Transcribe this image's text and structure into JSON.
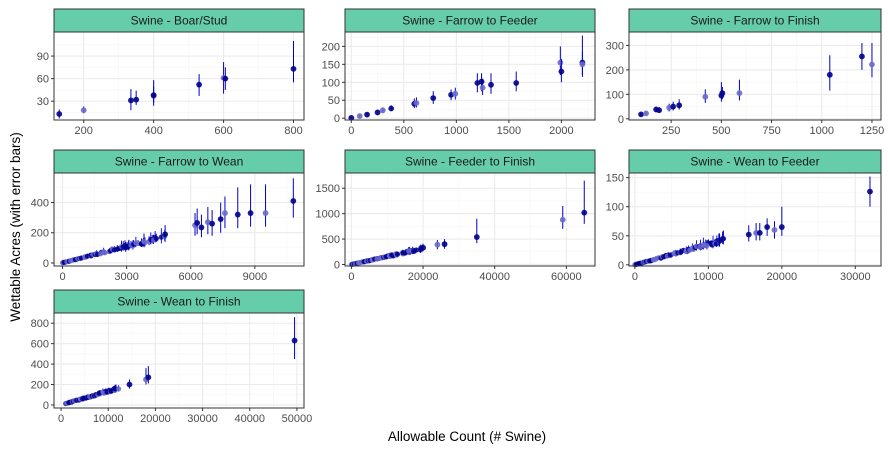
{
  "figure": {
    "xlabel": "Allowable Count (# Swine)",
    "ylabel": "Wettable Acres (with error bars)"
  },
  "colors": {
    "strip_fill": "#66cdaa",
    "strip_border": "#333333",
    "point_dark": "#00008b",
    "point_light": "#6a6acb",
    "error_bar": "#0000cd",
    "grid_major": "#ebebeb",
    "grid_minor": "#f5f5f5"
  },
  "chart_data": [
    {
      "type": "scatter",
      "title": "Swine - Boar/Stud",
      "xlim": [
        115,
        830
      ],
      "ylim": [
        5,
        122
      ],
      "x_ticks": [
        200,
        400,
        600,
        800
      ],
      "y_ticks": [
        30,
        60,
        90
      ],
      "points": [
        {
          "x": 130,
          "y": 13,
          "lo": 7,
          "hi": 19
        },
        {
          "x": 200,
          "y": 18,
          "lo": 14,
          "hi": 23
        },
        {
          "x": 335,
          "y": 31,
          "lo": 18,
          "hi": 46
        },
        {
          "x": 350,
          "y": 32,
          "lo": 25,
          "hi": 44
        },
        {
          "x": 400,
          "y": 37,
          "lo": 24,
          "hi": 58
        },
        {
          "x": 400,
          "y": 38,
          "lo": 28,
          "hi": 50
        },
        {
          "x": 530,
          "y": 52,
          "lo": 37,
          "hi": 66
        },
        {
          "x": 600,
          "y": 61,
          "lo": 40,
          "hi": 82
        },
        {
          "x": 605,
          "y": 60,
          "lo": 45,
          "hi": 75
        },
        {
          "x": 800,
          "y": 73,
          "lo": 55,
          "hi": 110
        }
      ]
    },
    {
      "type": "scatter",
      "title": "Swine - Farrow to Feeder",
      "xlim": [
        -60,
        2320
      ],
      "ylim": [
        -5,
        240
      ],
      "x_ticks": [
        0,
        500,
        1000,
        1500,
        2000
      ],
      "y_ticks": [
        0,
        50,
        100,
        150,
        200
      ],
      "points": [
        {
          "x": 0,
          "y": 1,
          "lo": 0,
          "hi": 3
        },
        {
          "x": 80,
          "y": 6,
          "lo": 3,
          "hi": 10
        },
        {
          "x": 150,
          "y": 10,
          "lo": 6,
          "hi": 14
        },
        {
          "x": 250,
          "y": 16,
          "lo": 10,
          "hi": 22
        },
        {
          "x": 300,
          "y": 22,
          "lo": 15,
          "hi": 30
        },
        {
          "x": 380,
          "y": 27,
          "lo": 20,
          "hi": 36
        },
        {
          "x": 600,
          "y": 40,
          "lo": 28,
          "hi": 55
        },
        {
          "x": 620,
          "y": 42,
          "lo": 30,
          "hi": 58
        },
        {
          "x": 780,
          "y": 56,
          "lo": 40,
          "hi": 75
        },
        {
          "x": 950,
          "y": 65,
          "lo": 50,
          "hi": 80
        },
        {
          "x": 990,
          "y": 68,
          "lo": 52,
          "hi": 85
        },
        {
          "x": 1200,
          "y": 98,
          "lo": 72,
          "hi": 125
        },
        {
          "x": 1240,
          "y": 102,
          "lo": 75,
          "hi": 125
        },
        {
          "x": 1250,
          "y": 85,
          "lo": 65,
          "hi": 110
        },
        {
          "x": 1330,
          "y": 93,
          "lo": 68,
          "hi": 125
        },
        {
          "x": 1570,
          "y": 98,
          "lo": 75,
          "hi": 130
        },
        {
          "x": 1990,
          "y": 155,
          "lo": 120,
          "hi": 200
        },
        {
          "x": 2000,
          "y": 130,
          "lo": 100,
          "hi": 165
        },
        {
          "x": 2200,
          "y": 155,
          "lo": 120,
          "hi": 230
        },
        {
          "x": 2200,
          "y": 150,
          "lo": 115,
          "hi": 185
        }
      ]
    },
    {
      "type": "scatter",
      "title": "Swine - Farrow to Finish",
      "xlim": [
        40,
        1295
      ],
      "ylim": [
        -5,
        355
      ],
      "x_ticks": [
        250,
        500,
        750,
        1000,
        1250
      ],
      "y_ticks": [
        0,
        100,
        200,
        300
      ],
      "points": [
        {
          "x": 100,
          "y": 18,
          "lo": 10,
          "hi": 26
        },
        {
          "x": 125,
          "y": 22,
          "lo": 14,
          "hi": 30
        },
        {
          "x": 175,
          "y": 38,
          "lo": 26,
          "hi": 50
        },
        {
          "x": 190,
          "y": 35,
          "lo": 24,
          "hi": 48
        },
        {
          "x": 240,
          "y": 45,
          "lo": 30,
          "hi": 62
        },
        {
          "x": 260,
          "y": 50,
          "lo": 34,
          "hi": 70
        },
        {
          "x": 290,
          "y": 55,
          "lo": 38,
          "hi": 80
        },
        {
          "x": 420,
          "y": 90,
          "lo": 65,
          "hi": 120
        },
        {
          "x": 500,
          "y": 95,
          "lo": 70,
          "hi": 150
        },
        {
          "x": 505,
          "y": 105,
          "lo": 80,
          "hi": 130
        },
        {
          "x": 590,
          "y": 105,
          "lo": 75,
          "hi": 160
        },
        {
          "x": 1040,
          "y": 180,
          "lo": 115,
          "hi": 260
        },
        {
          "x": 1200,
          "y": 255,
          "lo": 200,
          "hi": 310
        },
        {
          "x": 1250,
          "y": 222,
          "lo": 170,
          "hi": 310
        }
      ]
    },
    {
      "type": "scatter",
      "title": "Swine - Farrow to Wean",
      "xlim": [
        -400,
        11300
      ],
      "ylim": [
        -20,
        595
      ],
      "x_ticks": [
        0,
        3000,
        6000,
        9000
      ],
      "y_ticks": [
        0,
        200,
        400
      ],
      "trend": {
        "x0": 0,
        "x1": 4800,
        "slope": 0.036,
        "spread": 0.28,
        "count": 70
      },
      "points": [
        {
          "x": 4800,
          "y": 190,
          "lo": 140,
          "hi": 250
        },
        {
          "x": 6200,
          "y": 250,
          "lo": 180,
          "hi": 330
        },
        {
          "x": 6300,
          "y": 265,
          "lo": 190,
          "hi": 360
        },
        {
          "x": 6500,
          "y": 235,
          "lo": 170,
          "hi": 320
        },
        {
          "x": 6800,
          "y": 270,
          "lo": 190,
          "hi": 370
        },
        {
          "x": 7000,
          "y": 260,
          "lo": 180,
          "hi": 350
        },
        {
          "x": 7400,
          "y": 290,
          "lo": 200,
          "hi": 400
        },
        {
          "x": 7600,
          "y": 330,
          "lo": 230,
          "hi": 440
        },
        {
          "x": 8200,
          "y": 320,
          "lo": 230,
          "hi": 500
        },
        {
          "x": 8800,
          "y": 330,
          "lo": 240,
          "hi": 520
        },
        {
          "x": 9500,
          "y": 330,
          "lo": 240,
          "hi": 520
        },
        {
          "x": 10800,
          "y": 410,
          "lo": 300,
          "hi": 560
        }
      ]
    },
    {
      "type": "scatter",
      "title": "Swine - Feeder to Finish",
      "xlim": [
        -1800,
        68000
      ],
      "ylim": [
        -30,
        1800
      ],
      "x_ticks": [
        0,
        20000,
        40000,
        60000
      ],
      "y_ticks": [
        0,
        500,
        1000,
        1500
      ],
      "trend": {
        "x0": 0,
        "x1": 20000,
        "slope": 0.0157,
        "spread": 0.22,
        "count": 70
      },
      "points": [
        {
          "x": 20000,
          "y": 330,
          "lo": 260,
          "hi": 410
        },
        {
          "x": 24000,
          "y": 390,
          "lo": 300,
          "hi": 480
        },
        {
          "x": 26000,
          "y": 400,
          "lo": 310,
          "hi": 500
        },
        {
          "x": 35000,
          "y": 540,
          "lo": 420,
          "hi": 900
        },
        {
          "x": 59000,
          "y": 880,
          "lo": 700,
          "hi": 1150
        },
        {
          "x": 65000,
          "y": 1020,
          "lo": 800,
          "hi": 1650
        }
      ]
    },
    {
      "type": "scatter",
      "title": "Swine - Wean to Feeder",
      "xlim": [
        -800,
        33500
      ],
      "ylim": [
        -2,
        158
      ],
      "x_ticks": [
        0,
        10000,
        20000,
        30000
      ],
      "y_ticks": [
        0,
        50,
        100,
        150
      ],
      "trend": {
        "x0": 0,
        "x1": 13000,
        "slope": 0.0035,
        "spread": 0.25,
        "count": 70
      },
      "points": [
        {
          "x": 15500,
          "y": 52,
          "lo": 40,
          "hi": 68
        },
        {
          "x": 16500,
          "y": 55,
          "lo": 42,
          "hi": 72
        },
        {
          "x": 17000,
          "y": 55,
          "lo": 42,
          "hi": 72
        },
        {
          "x": 18000,
          "y": 65,
          "lo": 50,
          "hi": 80
        },
        {
          "x": 19000,
          "y": 60,
          "lo": 45,
          "hi": 75
        },
        {
          "x": 20000,
          "y": 65,
          "lo": 50,
          "hi": 100
        },
        {
          "x": 32000,
          "y": 126,
          "lo": 100,
          "hi": 152
        }
      ]
    },
    {
      "type": "scatter",
      "title": "Swine - Wean to Finish",
      "xlim": [
        -1500,
        51500
      ],
      "ylim": [
        -30,
        900
      ],
      "x_ticks": [
        0,
        10000,
        20000,
        30000,
        40000,
        50000
      ],
      "y_ticks": [
        0,
        200,
        400,
        600,
        800
      ],
      "trend": {
        "x0": 1000,
        "x1": 12500,
        "slope": 0.0135,
        "spread": 0.2,
        "count": 55
      },
      "points": [
        {
          "x": 14500,
          "y": 200,
          "lo": 160,
          "hi": 250
        },
        {
          "x": 18000,
          "y": 250,
          "lo": 200,
          "hi": 360
        },
        {
          "x": 18500,
          "y": 270,
          "lo": 210,
          "hi": 380
        },
        {
          "x": 49500,
          "y": 630,
          "lo": 450,
          "hi": 860
        }
      ]
    }
  ]
}
